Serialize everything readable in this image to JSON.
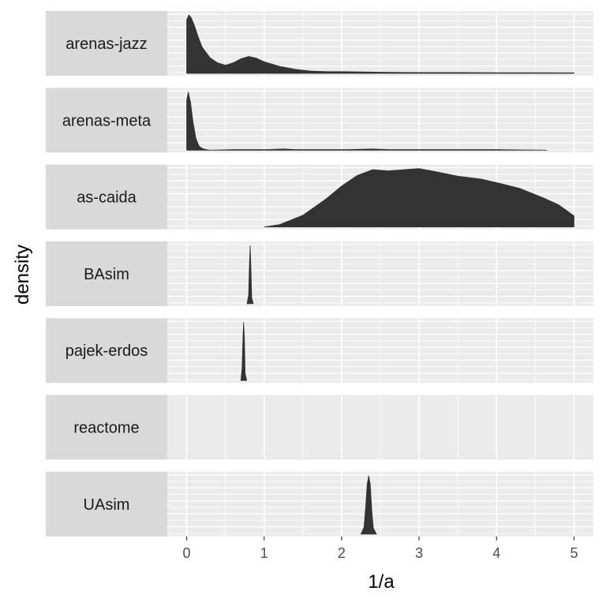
{
  "chart_data": {
    "type": "area",
    "xlabel": "1/a",
    "ylabel": "density",
    "xlim": [
      -0.25,
      5.25
    ],
    "x_ticks": [
      "0",
      "1",
      "2",
      "3",
      "4",
      "5"
    ],
    "grid": true,
    "colors": {
      "panel_bg": "#ebebeb",
      "strip_bg": "#d9d9d9",
      "grid_major": "#ffffff",
      "fill": "#333333"
    },
    "facets": [
      {
        "name": "arenas-jazz",
        "x": [
          0,
          0.03,
          0.06,
          0.1,
          0.15,
          0.2,
          0.3,
          0.4,
          0.5,
          0.6,
          0.7,
          0.8,
          0.9,
          1.0,
          1.2,
          1.4,
          1.6,
          1.8,
          2.0,
          2.5,
          3.0,
          3.5,
          4.0,
          4.5,
          5.0
        ],
        "y": [
          0.92,
          1.0,
          0.95,
          0.82,
          0.62,
          0.45,
          0.27,
          0.18,
          0.14,
          0.18,
          0.25,
          0.29,
          0.26,
          0.2,
          0.12,
          0.07,
          0.04,
          0.03,
          0.03,
          0.02,
          0.015,
          0.015,
          0.012,
          0.012,
          0.01
        ]
      },
      {
        "name": "arenas-meta",
        "x": [
          0,
          0.02,
          0.05,
          0.08,
          0.12,
          0.16,
          0.2,
          0.25,
          0.3,
          0.6,
          1.05,
          1.25,
          1.4,
          1.8,
          1.9,
          2.1,
          2.4,
          2.6,
          3.0,
          3.5,
          4.0,
          4.65
        ],
        "y": [
          0.85,
          1.0,
          0.82,
          0.5,
          0.2,
          0.07,
          0.03,
          0.01,
          0.0,
          0.01,
          0.01,
          0.02,
          0.01,
          0.01,
          0.01,
          0.01,
          0.02,
          0.01,
          0.01,
          0.01,
          0.01,
          0.0
        ]
      },
      {
        "name": "as-caida",
        "x": [
          1.0,
          1.2,
          1.5,
          1.8,
          2.0,
          2.2,
          2.4,
          2.6,
          2.8,
          3.0,
          3.2,
          3.5,
          3.8,
          4.0,
          4.3,
          4.6,
          4.8,
          5.0
        ],
        "y": [
          0.0,
          0.04,
          0.2,
          0.48,
          0.7,
          0.88,
          0.98,
          0.96,
          0.98,
          1.0,
          0.95,
          0.87,
          0.82,
          0.76,
          0.66,
          0.5,
          0.38,
          0.19
        ]
      },
      {
        "name": "BAsim",
        "x": [
          0.78,
          0.8,
          0.81,
          0.82,
          0.83,
          0.84,
          0.86
        ],
        "y": [
          0.0,
          0.15,
          0.65,
          1.0,
          0.6,
          0.1,
          0.0
        ]
      },
      {
        "name": "pajek-erdos",
        "x": [
          0.7,
          0.715,
          0.725,
          0.735,
          0.745,
          0.755,
          0.775
        ],
        "y": [
          0.0,
          0.2,
          0.65,
          1.0,
          0.75,
          0.12,
          0.0
        ]
      },
      {
        "name": "reactome",
        "x": [],
        "y": []
      },
      {
        "name": "UAsim",
        "x": [
          2.25,
          2.29,
          2.31,
          2.33,
          2.35,
          2.37,
          2.39,
          2.41,
          2.45
        ],
        "y": [
          0.0,
          0.12,
          0.45,
          0.85,
          1.0,
          0.85,
          0.4,
          0.1,
          0.0
        ]
      }
    ]
  }
}
